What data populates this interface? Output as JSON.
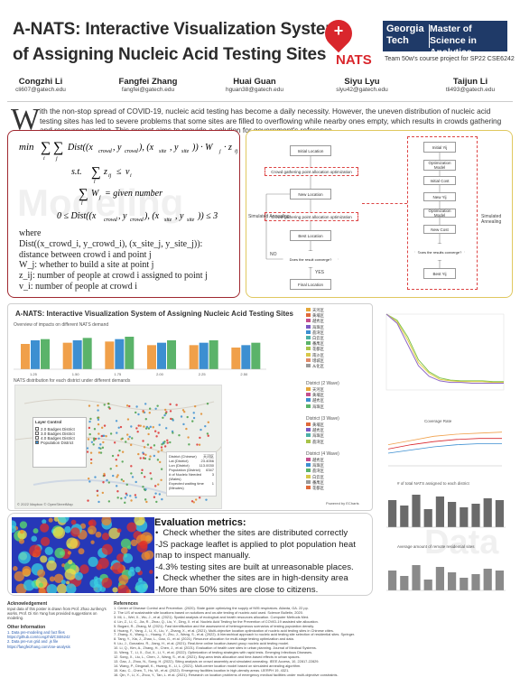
{
  "header": {
    "title_line1": "A-NATS: Interactive Visualization System",
    "title_line2": "of Assigning Nucleic Acid Testing Sites",
    "logo_word": "NATS",
    "gt_left": "Georgia Tech",
    "gt_right": "Master of Science in Analytics",
    "course": "Team 50w's course project for SP22 CSE6242",
    "authors": [
      {
        "name": "Congzhi Li",
        "email": "cli607@gatech.edu"
      },
      {
        "name": "Fangfei Zhang",
        "email": "fangfei@gatech.edu"
      },
      {
        "name": "Huai Guan",
        "email": "hguan38@gatech.edu"
      },
      {
        "name": "Siyu Lyu",
        "email": "slyu42@gatech.edu"
      },
      {
        "name": "Taijun Li",
        "email": "tli493@gatech.edu"
      }
    ]
  },
  "intro": {
    "dropcap": "W",
    "text": "ith the non-stop spread of COVID-19, nucleic acid testing has become a daily necessity. However, the uneven distribution of nucleic acid testing sites has led to severe problems that some sites are filled to overflowing while nearby ones empty, which results in crowds gathering and resource wasting. This project aims to provide a solution for government's reference."
  },
  "model": {
    "watermark": "Modeling",
    "where": "where",
    "defs": [
      "Dist((x_crowd_i, y_crowd_i), (x_site_j, y_site_j)): distance between crowd i and point j",
      "W_j: whether to build a site at point j",
      "z_ij: number of people at crowd i assigned to point j",
      "v_i: number of people at crowd i"
    ]
  },
  "flow": {
    "left": {
      "initial": "Initial Location",
      "opt1": "Crowd gathering point allocation optimization",
      "new": "New Location",
      "opt2": "Crowd gathering point allocation optimization",
      "best": "Best Location",
      "decision": "Does the result converge?",
      "final": "Final Location",
      "sa": "Simulated Annealing",
      "yes": "YES",
      "no": "NO"
    },
    "right": {
      "initial": "Initial Yij",
      "opt_model": "Optimization Model",
      "initial_cost": "Initial Cost",
      "new": "New Yij",
      "opt_model2": "Optimization Model",
      "new_cost": "New Cost",
      "best": "Best Yij",
      "decision": "Does the results converge?",
      "final": "Best Yij",
      "sa": "Simulated Annealing"
    }
  },
  "vis": {
    "title": "A-NATS: Interactive Visualization System of Assigning Nucleic Acid Testing Sites",
    "overview": "Overview of impacts on different NATS demand",
    "map_title": "NATS distribution for each district under different demands",
    "layer_control": "Layer Control",
    "layers": [
      "2.0 Badges District",
      "3.0 Badges District",
      "4.0 Badges District",
      "Population District"
    ],
    "map_footer": "© 2022 Mapbox © OpenStreetMap",
    "info_rows": [
      {
        "k": "District (Chinese)",
        "v": "天河区"
      },
      {
        "k": "Lat (District)",
        "v": "23.4056"
      },
      {
        "k": "Lon (District)",
        "v": "113.0030"
      },
      {
        "k": "Population (District)",
        "v": "6347"
      },
      {
        "k": "# of Nucleic Needed (Wales)",
        "v": "3"
      },
      {
        "k": "Expected waiting time (Minutes)",
        "v": "1"
      }
    ],
    "district_header1": "District (2 Wave)",
    "district_header2": "District (3 Wave)",
    "district_header3": "District (4 Wave)",
    "legend_names": [
      "天河区",
      "黄埔区",
      "越秀区",
      "海珠区",
      "荔湾区",
      "白云区",
      "番禺区",
      "花都区",
      "南沙区",
      "增城区",
      "从化区"
    ],
    "chart_right_title": "Coverage Rate",
    "chart_right2_title": "# of total NATS assigned to each district",
    "chart_right3_title": "Average amount of remote residential sites",
    "powered": "Powered by ECharts",
    "bar_labels": [
      "1.25",
      "1.50",
      "1.75",
      "2.00",
      "2.25",
      "2.50"
    ]
  },
  "eval": {
    "title": "Evaluation metrics:",
    "lines": [
      "Check whether the sites are distributed correctly",
      "-JS package leaflet is applied to plot population heat map to inspect manually.",
      "-4.3% testing sites are built at unreasonable places.",
      "Check whether the sites are in high-density area",
      "-More than 50% sites are close to citizens."
    ],
    "watermark": "Data"
  },
  "ack": {
    "title": "Acknowledgement",
    "text": "Input data of this poster is drawn from Prof. Zhao Junfeng's works. Prof. Di Xin Yang has provided suggestions on modeling.",
    "other_title": "Other Information",
    "other_lines": [
      "1. Data pre-modeling and fact files https://github.com/congzhili/CSE6242",
      "2. Data pre-run grid and .js file https://fangfeizhang.com/cse-analysis"
    ]
  },
  "references": {
    "title": "References",
    "items": [
      "1. Center of Disease Control and Prevention. (2020). State guide optimizing the supply of N95 respirators. Atlanta, GA. 22 pp.",
      "2. The LIS of sustainable site locations based on solutions and on-site testing of nucleic acid used. Science Bulletin, 2020.",
      "3. Mi, L., Wei, X., Wu, J., et al. (2021). Spatial analysis of ecological and health resources allocation. Computer Methods Med.",
      "4. Lin, Z., Li, C., Jia, R., Zhou, Q., Liu, Y., Ding, X. et al. Nucleic Acid Testing for the Prevention of COVID-19 assisted site allocation.",
      "5. Bogani, R., Zhang, M. (2021). Fast identification and the assessment of heterogeneous scenarios of testing population density.",
      "6. Huang, F., Yang, J., Li, X., Liu, Y., Zhang, X., et al. (2021). Multi-objective location optimization of nucleic acid testing sites in Chinese cities.",
      "7. Zhang, X., Wang, L., Huang, Y., Zhu, J., Wang, S., et al. (2022). A hierarchical approach to nucleic acid testing site selection of residential sites. Springer.",
      "8. Tang, Y., Xia, J., Zhao, L., Gao, G., et al. (2021). Resource allocation for multi-stage testing optimization and data.",
      "9. Liu, J., Gonzalez, R., Jiang, H., et al. (2021). Real-time online location-based group nucleic acid testing model.",
      "10. Li, Q., Kim, A., Zhang, H., Chen, J., et al. (2021). Evaluation of health care sites in urban planning. Journal of Medical Systems.",
      "11. Weng, T., Li, X., Gui, X., Li, Y., et al. (2022). Optimization of testing strategies with rapid tests. Emerging Infectious Diseases.",
      "12. Song, X., Liu, L., Chen, J., Wang, S., et al. (2021). Bay-area tests allocation and time-based effects in urban spaces.",
      "13. Gao, J., Zhou, N., Song, H. (2022). Siting analysis on crowd assembly and simulated annealing. IEEE Access, 10, 22817-22829.",
      "14. Wang, P., Dingwall, K., Hwang, K., Li, L. (2021). Multi-center location model based on simulated annealing algorithm.",
      "15. Kao, C., Chen, T., Hu, W., et al. (2022). Emergency facilities location in high-density areas. IJERPH 19, 4321.",
      "16. Qin, Y., Li, X., Zhou, Y., Tan, L. et al. (2021). Research on location problems of emergency medical facilities under multi-objective constraints."
    ]
  },
  "chart_data": [
    {
      "type": "bar",
      "title": "Overview of impacts on different NATS demand",
      "categories": [
        "1.25",
        "1.50",
        "1.75",
        "2.00",
        "2.25",
        "2.50"
      ],
      "series": [
        {
          "name": "",
          "values": [
            42,
            44,
            46,
            40,
            40,
            36
          ]
        },
        {
          "name": "",
          "values": [
            48,
            48,
            50,
            44,
            44,
            40
          ]
        },
        {
          "name": "",
          "values": [
            50,
            52,
            54,
            48,
            48,
            44
          ]
        }
      ]
    },
    {
      "type": "line",
      "series": [
        {
          "name": "",
          "values": [
            100,
            92,
            70,
            40,
            24,
            16,
            13,
            12,
            12,
            12,
            11,
            11
          ]
        },
        {
          "name": "",
          "values": [
            100,
            90,
            66,
            36,
            22,
            14,
            12,
            11,
            11,
            11,
            10,
            10
          ]
        },
        {
          "name": "",
          "values": [
            100,
            88,
            60,
            32,
            18,
            12,
            10,
            10,
            9,
            9,
            9,
            9
          ]
        }
      ]
    },
    {
      "type": "line",
      "title": "Coverage Rate",
      "series": [
        {
          "name": "",
          "values": [
            20,
            24,
            28,
            30,
            31,
            32
          ]
        },
        {
          "name": "",
          "values": [
            16,
            20,
            23,
            25,
            26,
            26
          ]
        },
        {
          "name": "",
          "values": [
            12,
            15,
            18,
            20,
            21,
            21
          ]
        }
      ]
    },
    {
      "type": "bar",
      "title": "# of total NATS assigned to each district",
      "values": [
        30,
        24,
        36,
        20,
        34,
        28,
        22,
        26,
        32,
        30
      ]
    },
    {
      "type": "bar",
      "title": "Average amount of remote residential sites",
      "values": [
        22,
        16,
        28,
        12,
        26,
        20,
        14,
        18,
        24,
        22
      ]
    }
  ],
  "colors": {
    "accent_red": "#a02930",
    "flow_border": "#e0c860",
    "gt_blue": "#1f3a68",
    "bar_orange": "#f0a04a",
    "bar_blue": "#3d8fd1",
    "line_green": "#7fc24a",
    "line_yellow": "#e3d14a",
    "line_purple": "#8e68c6"
  }
}
